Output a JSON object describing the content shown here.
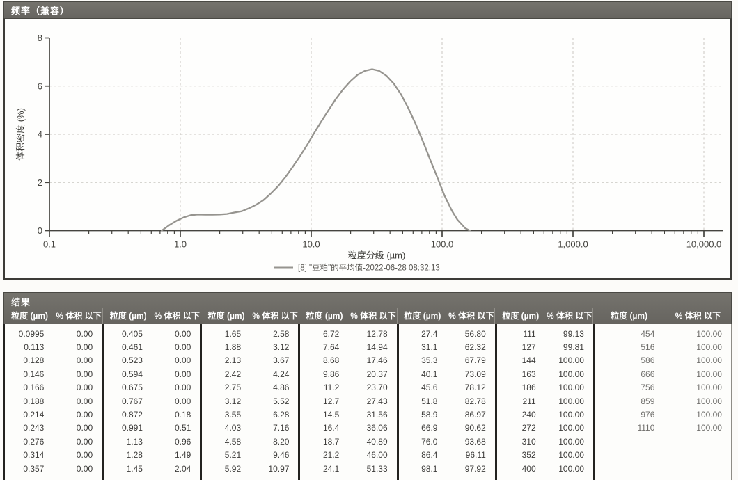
{
  "title_bar": {
    "label": "频率（兼容）"
  },
  "chart_data": {
    "type": "line",
    "title": "",
    "xlabel": "粒度分级 (µm)",
    "ylabel": "体积密度 (%)",
    "x_scale": "log",
    "xlim": [
      0.1,
      10000
    ],
    "ylim": [
      0,
      8
    ],
    "x_ticks": [
      0.1,
      1,
      10,
      100,
      1000,
      10000
    ],
    "x_tick_labels": [
      "0.1",
      "1.0",
      "10.0",
      "100.0",
      "1,000.0",
      "10,000.0"
    ],
    "y_ticks": [
      0,
      2,
      4,
      6,
      8
    ],
    "grid": true,
    "legend_position": "bottom",
    "legend": "[8] \"豆粕\"的平均值-2022-06-28 08:32:13",
    "series": [
      {
        "name": "[8] \"豆粕\"的平均值-2022-06-28 08:32:13",
        "color": "#96948f",
        "points": [
          [
            0.72,
            0.0
          ],
          [
            0.82,
            0.22
          ],
          [
            0.93,
            0.4
          ],
          [
            1.06,
            0.55
          ],
          [
            1.2,
            0.64
          ],
          [
            1.36,
            0.67
          ],
          [
            1.55,
            0.66
          ],
          [
            1.76,
            0.66
          ],
          [
            2.0,
            0.67
          ],
          [
            2.27,
            0.69
          ],
          [
            2.58,
            0.75
          ],
          [
            2.93,
            0.8
          ],
          [
            3.33,
            0.92
          ],
          [
            3.78,
            1.07
          ],
          [
            4.3,
            1.26
          ],
          [
            4.89,
            1.53
          ],
          [
            5.55,
            1.83
          ],
          [
            6.31,
            2.2
          ],
          [
            7.17,
            2.62
          ],
          [
            8.14,
            3.06
          ],
          [
            9.25,
            3.53
          ],
          [
            10.5,
            4.04
          ],
          [
            11.9,
            4.52
          ],
          [
            13.6,
            5.01
          ],
          [
            15.4,
            5.46
          ],
          [
            17.5,
            5.86
          ],
          [
            19.9,
            6.2
          ],
          [
            22.6,
            6.47
          ],
          [
            25.7,
            6.63
          ],
          [
            29.2,
            6.7
          ],
          [
            33.1,
            6.63
          ],
          [
            37.6,
            6.43
          ],
          [
            42.8,
            6.1
          ],
          [
            48.6,
            5.65
          ],
          [
            55.2,
            5.08
          ],
          [
            62.8,
            4.43
          ],
          [
            71.3,
            3.71
          ],
          [
            81.0,
            2.95
          ],
          [
            92.1,
            2.2
          ],
          [
            104,
            1.47
          ],
          [
            119,
            0.82
          ],
          [
            131,
            0.45
          ],
          [
            140,
            0.28
          ],
          [
            150,
            0.1
          ],
          [
            163,
            0.0
          ]
        ]
      }
    ]
  },
  "results": {
    "section_title": "结果",
    "col_size": "粒度 (µm)",
    "col_pct": "% 体积 以下",
    "groups": [
      {
        "rows": [
          [
            "0.0995",
            "0.00"
          ],
          [
            "0.113",
            "0.00"
          ],
          [
            "0.128",
            "0.00"
          ],
          [
            "0.146",
            "0.00"
          ],
          [
            "0.166",
            "0.00"
          ],
          [
            "0.188",
            "0.00"
          ],
          [
            "0.214",
            "0.00"
          ],
          [
            "0.243",
            "0.00"
          ],
          [
            "0.276",
            "0.00"
          ],
          [
            "0.314",
            "0.00"
          ],
          [
            "0.357",
            "0.00"
          ]
        ]
      },
      {
        "rows": [
          [
            "0.405",
            "0.00"
          ],
          [
            "0.461",
            "0.00"
          ],
          [
            "0.523",
            "0.00"
          ],
          [
            "0.594",
            "0.00"
          ],
          [
            "0.675",
            "0.00"
          ],
          [
            "0.767",
            "0.00"
          ],
          [
            "0.872",
            "0.18"
          ],
          [
            "0.991",
            "0.51"
          ],
          [
            "1.13",
            "0.96"
          ],
          [
            "1.28",
            "1.49"
          ],
          [
            "1.45",
            "2.04"
          ]
        ]
      },
      {
        "rows": [
          [
            "1.65",
            "2.58"
          ],
          [
            "1.88",
            "3.12"
          ],
          [
            "2.13",
            "3.67"
          ],
          [
            "2.42",
            "4.24"
          ],
          [
            "2.75",
            "4.86"
          ],
          [
            "3.12",
            "5.52"
          ],
          [
            "3.55",
            "6.28"
          ],
          [
            "4.03",
            "7.16"
          ],
          [
            "4.58",
            "8.20"
          ],
          [
            "5.21",
            "9.46"
          ],
          [
            "5.92",
            "10.97"
          ]
        ]
      },
      {
        "rows": [
          [
            "6.72",
            "12.78"
          ],
          [
            "7.64",
            "14.94"
          ],
          [
            "8.68",
            "17.46"
          ],
          [
            "9.86",
            "20.37"
          ],
          [
            "11.2",
            "23.70"
          ],
          [
            "12.7",
            "27.43"
          ],
          [
            "14.5",
            "31.56"
          ],
          [
            "16.4",
            "36.06"
          ],
          [
            "18.7",
            "40.89"
          ],
          [
            "21.2",
            "46.00"
          ],
          [
            "24.1",
            "51.33"
          ]
        ]
      },
      {
        "rows": [
          [
            "27.4",
            "56.80"
          ],
          [
            "31.1",
            "62.32"
          ],
          [
            "35.3",
            "67.79"
          ],
          [
            "40.1",
            "73.09"
          ],
          [
            "45.6",
            "78.12"
          ],
          [
            "51.8",
            "82.78"
          ],
          [
            "58.9",
            "86.97"
          ],
          [
            "66.9",
            "90.62"
          ],
          [
            "76.0",
            "93.68"
          ],
          [
            "86.4",
            "96.11"
          ],
          [
            "98.1",
            "97.92"
          ]
        ]
      },
      {
        "rows": [
          [
            "111",
            "99.13"
          ],
          [
            "127",
            "99.81"
          ],
          [
            "144",
            "100.00"
          ],
          [
            "163",
            "100.00"
          ],
          [
            "186",
            "100.00"
          ],
          [
            "211",
            "100.00"
          ],
          [
            "240",
            "100.00"
          ],
          [
            "272",
            "100.00"
          ],
          [
            "310",
            "100.00"
          ],
          [
            "352",
            "100.00"
          ],
          [
            "400",
            "100.00"
          ]
        ]
      },
      {
        "rows": [
          [
            "454",
            "100.00"
          ],
          [
            "516",
            "100.00"
          ],
          [
            "586",
            "100.00"
          ],
          [
            "666",
            "100.00"
          ],
          [
            "756",
            "100.00"
          ],
          [
            "859",
            "100.00"
          ],
          [
            "976",
            "100.00"
          ],
          [
            "1110",
            "100.00"
          ]
        ]
      }
    ]
  }
}
